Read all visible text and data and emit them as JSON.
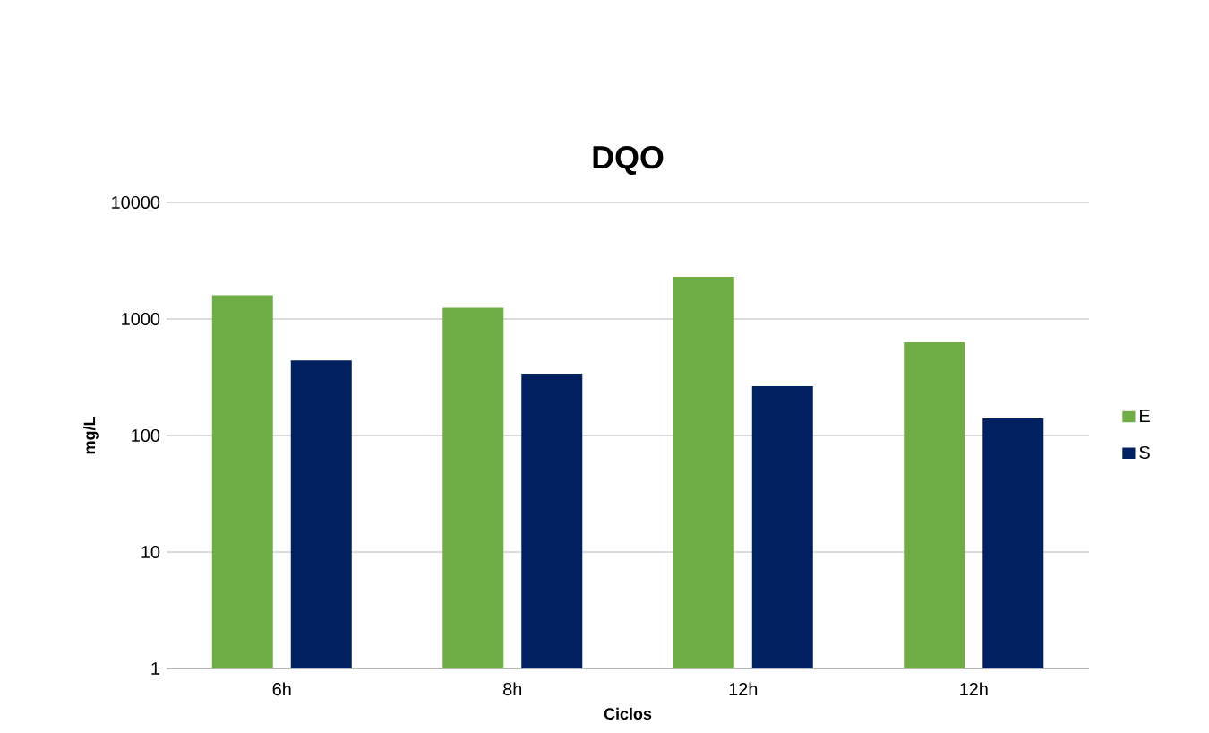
{
  "chart_data": {
    "type": "bar",
    "title": "DQO",
    "xlabel": "Ciclos",
    "ylabel": "mg/L",
    "categories": [
      "6h",
      "8h",
      "12h",
      "12h"
    ],
    "series": [
      {
        "name": "E",
        "color": "#70ad47",
        "values": [
          1600,
          1250,
          2300,
          630
        ]
      },
      {
        "name": "S",
        "color": "#002060",
        "values": [
          440,
          340,
          265,
          140
        ]
      }
    ],
    "log": "y",
    "ylim": [
      1,
      10000
    ],
    "yticks": [
      1,
      10,
      100,
      1000,
      10000
    ],
    "grid": "y",
    "legend": "right"
  }
}
